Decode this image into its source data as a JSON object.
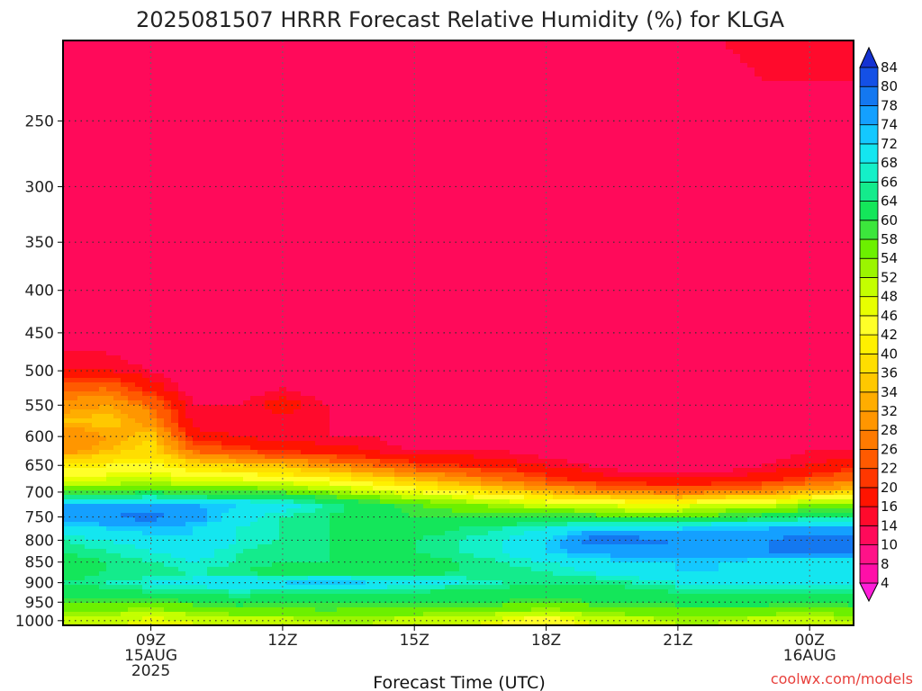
{
  "chart_data": {
    "type": "heatmap",
    "title": "2025081507 HRRR Forecast Relative Humidity (%) for KLGA",
    "xlabel": "Forecast Time (UTC)",
    "ylabel": "",
    "credit": "coolwx.com/models",
    "x_hours": [
      7,
      8,
      9,
      10,
      11,
      12,
      13,
      14,
      15,
      16,
      17,
      18,
      19,
      20,
      21,
      22,
      23,
      24,
      25
    ],
    "x_range_hours": [
      7,
      25
    ],
    "x_ticks": [
      {
        "hour": 9,
        "lines": [
          "09Z",
          "15AUG",
          "2025"
        ]
      },
      {
        "hour": 12,
        "lines": [
          "12Z"
        ]
      },
      {
        "hour": 15,
        "lines": [
          "15Z"
        ]
      },
      {
        "hour": 18,
        "lines": [
          "18Z"
        ]
      },
      {
        "hour": 21,
        "lines": [
          "21Z"
        ]
      },
      {
        "hour": 24,
        "lines": [
          "00Z",
          "16AUG"
        ]
      }
    ],
    "y_scale": "log",
    "y_range_hpa": [
      1013,
      200
    ],
    "y_ticks": [
      250,
      300,
      350,
      400,
      450,
      500,
      550,
      600,
      650,
      700,
      750,
      800,
      850,
      900,
      950,
      1000
    ],
    "y_levels_hpa": [
      1000,
      975,
      950,
      925,
      900,
      875,
      850,
      825,
      800,
      775,
      750,
      725,
      700,
      675,
      650,
      625,
      600,
      575,
      550,
      525,
      500,
      475,
      450,
      425,
      400,
      375,
      350,
      325,
      300,
      275,
      250,
      225,
      200
    ],
    "rh_percent": [
      [
        50,
        50,
        46,
        48,
        50,
        50,
        52,
        52,
        50,
        50,
        46,
        42,
        48,
        50,
        52,
        52,
        50,
        50,
        52
      ],
      [
        54,
        54,
        52,
        54,
        56,
        56,
        58,
        56,
        56,
        54,
        54,
        52,
        54,
        56,
        56,
        56,
        56,
        54,
        56
      ],
      [
        58,
        58,
        58,
        60,
        62,
        60,
        60,
        60,
        60,
        60,
        60,
        58,
        60,
        60,
        62,
        62,
        62,
        60,
        62
      ],
      [
        62,
        62,
        64,
        64,
        66,
        64,
        64,
        64,
        64,
        62,
        62,
        62,
        62,
        62,
        64,
        64,
        64,
        64,
        64
      ],
      [
        64,
        66,
        68,
        70,
        72,
        72,
        74,
        72,
        70,
        68,
        66,
        64,
        64,
        66,
        68,
        70,
        70,
        70,
        68
      ],
      [
        62,
        64,
        64,
        66,
        64,
        62,
        62,
        62,
        62,
        64,
        64,
        66,
        68,
        70,
        72,
        72,
        70,
        70,
        68
      ],
      [
        62,
        64,
        66,
        68,
        66,
        64,
        64,
        62,
        62,
        64,
        66,
        68,
        70,
        72,
        72,
        72,
        70,
        70,
        68
      ],
      [
        64,
        66,
        68,
        70,
        66,
        64,
        64,
        62,
        64,
        66,
        68,
        72,
        76,
        76,
        76,
        76,
        78,
        78,
        78
      ],
      [
        66,
        68,
        70,
        72,
        68,
        66,
        64,
        64,
        64,
        66,
        68,
        72,
        80,
        80,
        78,
        78,
        78,
        80,
        80
      ],
      [
        70,
        72,
        74,
        72,
        68,
        66,
        64,
        62,
        62,
        64,
        66,
        68,
        72,
        72,
        72,
        74,
        74,
        76,
        76
      ],
      [
        76,
        78,
        80,
        76,
        70,
        66,
        64,
        62,
        60,
        60,
        60,
        60,
        60,
        58,
        58,
        60,
        62,
        64,
        64
      ],
      [
        74,
        74,
        76,
        74,
        72,
        70,
        66,
        62,
        58,
        56,
        52,
        50,
        48,
        46,
        46,
        48,
        50,
        54,
        56
      ],
      [
        58,
        58,
        60,
        58,
        58,
        58,
        54,
        50,
        46,
        42,
        38,
        34,
        30,
        28,
        26,
        28,
        30,
        34,
        36
      ],
      [
        46,
        48,
        50,
        46,
        46,
        44,
        42,
        38,
        34,
        30,
        26,
        22,
        18,
        16,
        16,
        16,
        18,
        22,
        26
      ],
      [
        40,
        42,
        44,
        38,
        36,
        34,
        30,
        26,
        22,
        20,
        18,
        16,
        14,
        12,
        12,
        12,
        14,
        16,
        18
      ],
      [
        30,
        34,
        38,
        26,
        22,
        20,
        18,
        16,
        14,
        14,
        14,
        12,
        12,
        12,
        12,
        12,
        12,
        14,
        14
      ],
      [
        28,
        32,
        36,
        18,
        16,
        14,
        14,
        14,
        12,
        12,
        12,
        12,
        12,
        12,
        12,
        12,
        12,
        12,
        12
      ],
      [
        34,
        36,
        30,
        14,
        14,
        14,
        14,
        12,
        12,
        12,
        12,
        12,
        12,
        12,
        12,
        12,
        12,
        12,
        12
      ],
      [
        30,
        32,
        26,
        14,
        14,
        18,
        14,
        12,
        12,
        12,
        12,
        12,
        12,
        12,
        12,
        12,
        12,
        12,
        12
      ],
      [
        24,
        26,
        18,
        12,
        12,
        14,
        12,
        12,
        12,
        12,
        12,
        12,
        12,
        12,
        12,
        12,
        12,
        12,
        12
      ],
      [
        16,
        16,
        14,
        12,
        12,
        12,
        12,
        12,
        12,
        12,
        12,
        12,
        12,
        12,
        12,
        12,
        12,
        12,
        12
      ],
      [
        14,
        14,
        12,
        12,
        12,
        12,
        12,
        12,
        12,
        12,
        12,
        12,
        12,
        12,
        12,
        12,
        12,
        12,
        12
      ],
      [
        12,
        12,
        10,
        10,
        10,
        10,
        10,
        10,
        10,
        10,
        10,
        10,
        10,
        10,
        10,
        10,
        10,
        10,
        12
      ],
      [
        12,
        12,
        12,
        12,
        12,
        12,
        12,
        12,
        12,
        12,
        12,
        12,
        12,
        12,
        12,
        12,
        12,
        12,
        12
      ],
      [
        12,
        12,
        12,
        12,
        12,
        12,
        12,
        12,
        12,
        10,
        10,
        10,
        10,
        10,
        10,
        10,
        10,
        10,
        10
      ],
      [
        12,
        12,
        12,
        12,
        12,
        12,
        12,
        12,
        10,
        10,
        10,
        10,
        10,
        10,
        10,
        10,
        10,
        10,
        10
      ],
      [
        12,
        12,
        12,
        12,
        12,
        12,
        12,
        12,
        10,
        10,
        10,
        10,
        10,
        10,
        10,
        10,
        10,
        10,
        10
      ],
      [
        12,
        12,
        12,
        12,
        12,
        12,
        12,
        12,
        12,
        12,
        12,
        12,
        10,
        10,
        10,
        10,
        10,
        10,
        10
      ],
      [
        14,
        12,
        12,
        12,
        12,
        12,
        12,
        12,
        12,
        12,
        12,
        12,
        12,
        12,
        12,
        12,
        12,
        12,
        12
      ],
      [
        12,
        12,
        12,
        12,
        12,
        12,
        12,
        12,
        12,
        12,
        12,
        12,
        12,
        12,
        12,
        12,
        12,
        12,
        12
      ],
      [
        12,
        12,
        12,
        12,
        12,
        12,
        12,
        12,
        12,
        12,
        12,
        12,
        12,
        12,
        12,
        12,
        12,
        12,
        12
      ],
      [
        12,
        12,
        12,
        12,
        12,
        12,
        12,
        12,
        12,
        12,
        12,
        12,
        12,
        12,
        12,
        12,
        14,
        14,
        14
      ],
      [
        12,
        12,
        12,
        12,
        12,
        12,
        12,
        12,
        12,
        12,
        12,
        12,
        12,
        12,
        12,
        14,
        16,
        16,
        14
      ]
    ],
    "colorbar": {
      "thresholds": [
        4,
        8,
        10,
        14,
        16,
        20,
        22,
        26,
        28,
        32,
        34,
        36,
        40,
        42,
        46,
        48,
        52,
        54,
        58,
        60,
        64,
        66,
        68,
        72,
        74,
        78,
        80,
        84
      ],
      "label_values": [
        4,
        8,
        10,
        14,
        16,
        20,
        22,
        26,
        28,
        32,
        34,
        36,
        40,
        42,
        46,
        48,
        52,
        54,
        58,
        60,
        64,
        66,
        68,
        72,
        74,
        78,
        80,
        84
      ],
      "colors": [
        "#ff14d2",
        "#ff0fa8",
        "#ff1288",
        "#ff0a5a",
        "#ff0a2c",
        "#ff1400",
        "#ff3700",
        "#ff5a00",
        "#ff7a00",
        "#ff9600",
        "#ffad00",
        "#ffc800",
        "#ffde00",
        "#fff000",
        "#ffff28",
        "#e8ff00",
        "#c4ff00",
        "#9bf500",
        "#6cf000",
        "#3ce63c",
        "#14e65a",
        "#14eb8c",
        "#14f0c8",
        "#14e6f0",
        "#14c8ff",
        "#14a0ff",
        "#1478f0",
        "#1450e6",
        "#1432d2"
      ],
      "under_color": "#ff1ed8",
      "over_color": "#1432d2"
    },
    "ground_color": "#a0522d"
  }
}
